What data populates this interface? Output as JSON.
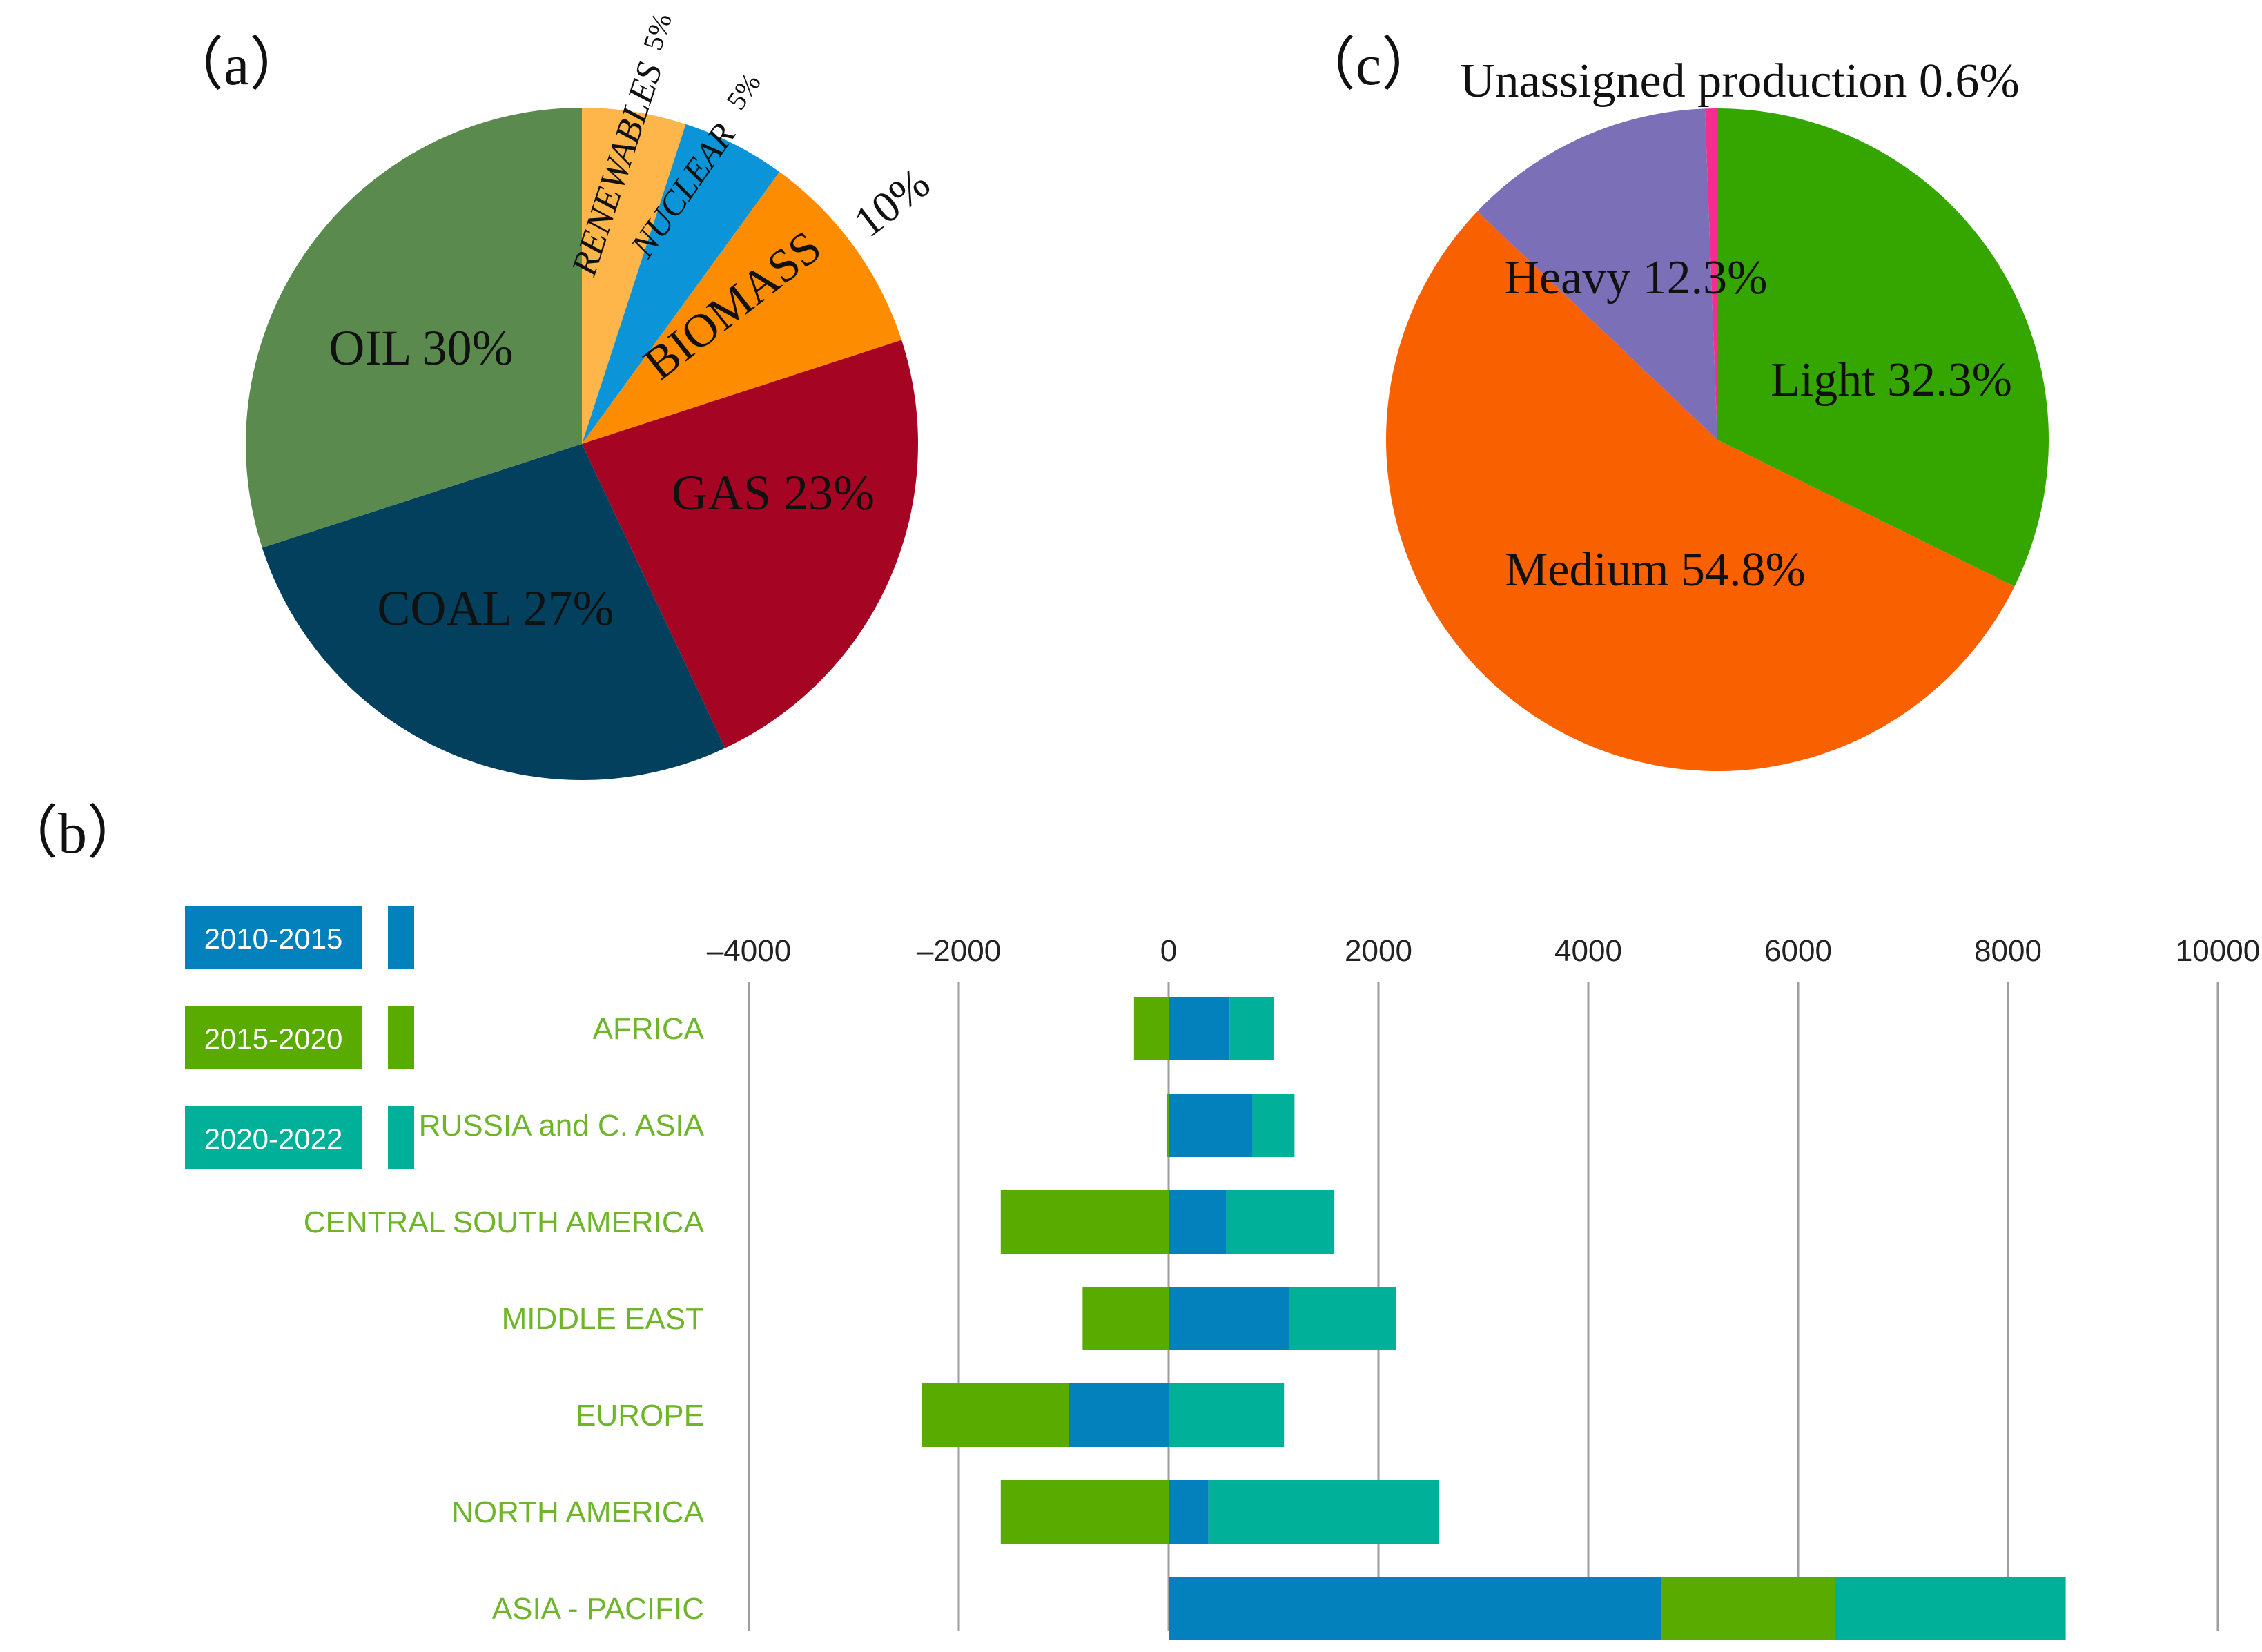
{
  "colors": {
    "oil": "#5b8a4e",
    "coal": "#02405e",
    "gas": "#a50522",
    "biomass": "#fe8c00",
    "nuclear": "#0b94d8",
    "renewables": "#feb54a",
    "light": "#35a600",
    "medium": "#f96100",
    "heavy": "#7b70b7",
    "unassigned": "#f52e8d",
    "s2010": "#0281bd",
    "s2015": "#59ab00",
    "s2020": "#00b098",
    "category_text": "#6fb52a",
    "grid": "#9e9e9e"
  },
  "chart_data": [
    {
      "id": "a",
      "type": "pie",
      "panel_label": "（a）",
      "slices": [
        {
          "name": "RENEWABLES",
          "value": 5,
          "label": "RENEWABLES",
          "pct_label": "5%",
          "color_key": "renewables"
        },
        {
          "name": "NUCLEAR",
          "value": 5,
          "label": "NUCLEAR",
          "pct_label": "5%",
          "color_key": "nuclear"
        },
        {
          "name": "BIOMASS",
          "value": 10,
          "label": "BIOMASS",
          "pct_label": "10%",
          "color_key": "biomass"
        },
        {
          "name": "GAS",
          "value": 23,
          "label": "GAS 23%",
          "color_key": "gas"
        },
        {
          "name": "COAL",
          "value": 27,
          "label": "COAL 27%",
          "color_key": "coal"
        },
        {
          "name": "OIL",
          "value": 30,
          "label": "OIL 30%",
          "color_key": "oil"
        }
      ]
    },
    {
      "id": "c",
      "type": "pie",
      "panel_label": "（c）",
      "slices": [
        {
          "name": "Light",
          "value": 32.3,
          "label": "Light 32.3%",
          "color_key": "light"
        },
        {
          "name": "Medium",
          "value": 54.8,
          "label": "Medium 54.8%",
          "color_key": "medium"
        },
        {
          "name": "Heavy",
          "value": 12.3,
          "label": "Heavy 12.3%",
          "color_key": "heavy"
        },
        {
          "name": "Unassigned production",
          "value": 0.6,
          "label": "Unassigned production 0.6%",
          "color_key": "unassigned"
        }
      ]
    },
    {
      "id": "b",
      "type": "bar",
      "orientation": "horizontal",
      "stacked": true,
      "panel_label": "（b）",
      "xlim": [
        -4000,
        10000
      ],
      "xticks": [
        -4000,
        -2000,
        0,
        2000,
        4000,
        6000,
        8000,
        10000
      ],
      "xtick_labels": [
        "–4000",
        "–2000",
        "0",
        "2000",
        "4000",
        "6000",
        "8000",
        "10000"
      ],
      "grid": true,
      "legend_position": "top-left",
      "categories": [
        "AFRICA",
        "RUSSIA and C. ASIA",
        "CENTRAL SOUTH AMERICA",
        "MIDDLE EAST",
        "EUROPE",
        "NORTH AMERICA",
        "ASIA - PACIFIC"
      ],
      "series": [
        {
          "name": "2010-2015",
          "color_key": "s2010",
          "values": [
            580,
            800,
            550,
            1150,
            -950,
            380,
            4700
          ]
        },
        {
          "name": "2015-2020",
          "color_key": "s2015",
          "values": [
            -330,
            -20,
            -1600,
            -820,
            -1400,
            -1600,
            1650
          ]
        },
        {
          "name": "2020-2022",
          "color_key": "s2020",
          "values": [
            420,
            400,
            1030,
            1020,
            1100,
            2200,
            2200
          ]
        }
      ]
    }
  ]
}
